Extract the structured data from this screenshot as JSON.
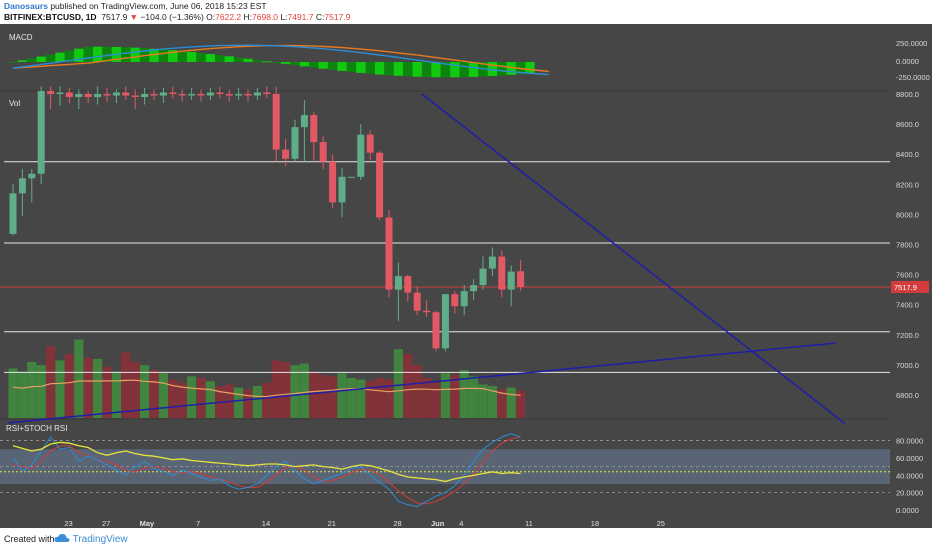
{
  "header": {
    "author": "Danosaurs",
    "published": "published on TradingView.com, June 06, 2018 15:23 EST",
    "symbol": "BITFINEX:BTCUSD, 1D",
    "last": "7517.9",
    "change": "−104.0 (−1.36%)",
    "o_label": "O:",
    "o": "7622.2",
    "h_label": "H:",
    "h": "7698.0",
    "l_label": "L:",
    "l": "7491.7",
    "c_label": "C:",
    "c": "7517.9"
  },
  "footer": {
    "created_with": "Created with",
    "brand": "TradingView"
  },
  "colors": {
    "background": "#464646",
    "bull": "#5fae89",
    "bear": "#e25864",
    "macd_line": "#2d8cd6",
    "signal_line": "#e8791e",
    "histogram": "#1fe21f",
    "trendline": "#1e1ea8",
    "level_line": "#e6e6e6",
    "price_line": "#d33c3c",
    "rsi": "#e6e33c",
    "stoch_k": "#2d8cd6",
    "stoch_d": "#d33c3c",
    "rsi_band": "#6a7f9c"
  },
  "chart_data": [
    {
      "type": "candlestick",
      "title": "BITFINEX:BTCUSD, 1D",
      "x_tick_labels": [
        "23",
        "27",
        "May",
        "7",
        "14",
        "21",
        "28",
        "Jun",
        "4",
        "11",
        "18",
        "25"
      ],
      "price_ticks": [
        "8800.0",
        "8600.0",
        "8400.0",
        "8200.0",
        "8000.0",
        "7800.0",
        "7600.0",
        "7400.0",
        "7200.0",
        "7000.0",
        "6800.0"
      ],
      "y_range": [
        6700,
        8850
      ],
      "last_price_label": "7517.9",
      "candles": [
        {
          "o": 7870,
          "h": 8200,
          "l": 7860,
          "c": 8140
        },
        {
          "o": 8140,
          "h": 8300,
          "l": 7990,
          "c": 8240
        },
        {
          "o": 8240,
          "h": 8300,
          "l": 8080,
          "c": 8270
        },
        {
          "o": 8270,
          "h": 8850,
          "l": 8200,
          "c": 8820
        },
        {
          "o": 8820,
          "h": 8850,
          "l": 8700,
          "c": 8800
        },
        {
          "o": 8800,
          "h": 8850,
          "l": 8720,
          "c": 8810
        },
        {
          "o": 8810,
          "h": 8840,
          "l": 8740,
          "c": 8780
        },
        {
          "o": 8780,
          "h": 8830,
          "l": 8700,
          "c": 8800
        },
        {
          "o": 8800,
          "h": 8820,
          "l": 8740,
          "c": 8780
        },
        {
          "o": 8780,
          "h": 8850,
          "l": 8730,
          "c": 8800
        },
        {
          "o": 8800,
          "h": 8840,
          "l": 8750,
          "c": 8790
        },
        {
          "o": 8790,
          "h": 8830,
          "l": 8740,
          "c": 8810
        },
        {
          "o": 8810,
          "h": 8850,
          "l": 8760,
          "c": 8790
        },
        {
          "o": 8790,
          "h": 8830,
          "l": 8700,
          "c": 8780
        },
        {
          "o": 8780,
          "h": 8840,
          "l": 8730,
          "c": 8800
        },
        {
          "o": 8800,
          "h": 8830,
          "l": 8760,
          "c": 8790
        },
        {
          "o": 8790,
          "h": 8840,
          "l": 8740,
          "c": 8810
        },
        {
          "o": 8810,
          "h": 8850,
          "l": 8770,
          "c": 8800
        },
        {
          "o": 8800,
          "h": 8830,
          "l": 8750,
          "c": 8790
        },
        {
          "o": 8790,
          "h": 8840,
          "l": 8760,
          "c": 8800
        },
        {
          "o": 8800,
          "h": 8830,
          "l": 8750,
          "c": 8790
        },
        {
          "o": 8790,
          "h": 8840,
          "l": 8760,
          "c": 8810
        },
        {
          "o": 8810,
          "h": 8850,
          "l": 8770,
          "c": 8800
        },
        {
          "o": 8800,
          "h": 8830,
          "l": 8750,
          "c": 8790
        },
        {
          "o": 8790,
          "h": 8840,
          "l": 8760,
          "c": 8800
        },
        {
          "o": 8800,
          "h": 8830,
          "l": 8750,
          "c": 8790
        },
        {
          "o": 8790,
          "h": 8840,
          "l": 8760,
          "c": 8810
        },
        {
          "o": 8810,
          "h": 8850,
          "l": 8770,
          "c": 8800
        },
        {
          "o": 8800,
          "h": 8850,
          "l": 8350,
          "c": 8430
        },
        {
          "o": 8430,
          "h": 8500,
          "l": 8320,
          "c": 8370
        },
        {
          "o": 8370,
          "h": 8630,
          "l": 8350,
          "c": 8580
        },
        {
          "o": 8580,
          "h": 8760,
          "l": 8350,
          "c": 8660
        },
        {
          "o": 8660,
          "h": 8680,
          "l": 8350,
          "c": 8480
        },
        {
          "o": 8480,
          "h": 8520,
          "l": 8300,
          "c": 8350
        },
        {
          "o": 8350,
          "h": 8400,
          "l": 8040,
          "c": 8080
        },
        {
          "o": 8080,
          "h": 8310,
          "l": 7980,
          "c": 8250
        },
        {
          "o": 8250,
          "h": 8250,
          "l": 8250,
          "c": 8250
        },
        {
          "o": 8250,
          "h": 8600,
          "l": 8230,
          "c": 8530
        },
        {
          "o": 8530,
          "h": 8560,
          "l": 8360,
          "c": 8410
        },
        {
          "o": 8410,
          "h": 8420,
          "l": 7960,
          "c": 7980
        },
        {
          "o": 7980,
          "h": 8030,
          "l": 7450,
          "c": 7500
        },
        {
          "o": 7500,
          "h": 7680,
          "l": 7290,
          "c": 7590
        },
        {
          "o": 7590,
          "h": 7600,
          "l": 7420,
          "c": 7480
        },
        {
          "o": 7480,
          "h": 7520,
          "l": 7330,
          "c": 7360
        },
        {
          "o": 7360,
          "h": 7430,
          "l": 7320,
          "c": 7350
        },
        {
          "o": 7350,
          "h": 7360,
          "l": 7090,
          "c": 7110
        },
        {
          "o": 7110,
          "h": 7470,
          "l": 7090,
          "c": 7470
        },
        {
          "o": 7470,
          "h": 7490,
          "l": 7340,
          "c": 7390
        },
        {
          "o": 7390,
          "h": 7530,
          "l": 7330,
          "c": 7490
        },
        {
          "o": 7490,
          "h": 7570,
          "l": 7430,
          "c": 7530
        },
        {
          "o": 7530,
          "h": 7720,
          "l": 7500,
          "c": 7640
        },
        {
          "o": 7640,
          "h": 7780,
          "l": 7590,
          "c": 7720
        },
        {
          "o": 7720,
          "h": 7760,
          "l": 7450,
          "c": 7500
        },
        {
          "o": 7500,
          "h": 7660,
          "l": 7390,
          "c": 7620
        },
        {
          "o": 7622.2,
          "h": 7698.0,
          "l": 7491.7,
          "c": 7517.9
        }
      ],
      "horizontal_levels": [
        8350,
        7810,
        7220,
        6950
      ],
      "trendlines": [
        {
          "from": {
            "x_index": -0.5,
            "y": 6615
          },
          "to": {
            "x_index": 87.5,
            "y": 7145
          }
        },
        {
          "from": {
            "x_index": 43.5,
            "y": 8800
          },
          "to": {
            "x_index": 88.5,
            "y": 6610
          }
        }
      ]
    },
    {
      "type": "bar",
      "title": "Vol",
      "values": [
        62,
        58,
        70,
        66,
        90,
        72,
        80,
        98,
        75,
        74,
        64,
        58,
        82,
        70,
        66,
        60,
        56,
        48,
        44,
        52,
        50,
        46,
        40,
        42,
        38,
        36,
        40,
        44,
        72,
        70,
        66,
        68,
        58,
        54,
        52,
        56,
        50,
        48,
        46,
        50,
        48,
        86,
        80,
        66,
        50,
        46,
        56,
        54,
        60,
        52,
        42,
        40,
        36,
        38,
        34
      ]
    },
    {
      "type": "line",
      "title": "MACD",
      "y_ticks": [
        "250.0000",
        "0.0000",
        "-250.0000"
      ],
      "histogram_colors": [
        "#0fd10f",
        "#0b880b"
      ]
    },
    {
      "type": "line",
      "title": "RSI+STOCH RSI",
      "y_ticks": [
        "80.0000",
        "60.0000",
        "40.0000",
        "20.0000",
        "0.0000"
      ],
      "y_range": [
        0,
        100
      ],
      "band": [
        30,
        70
      ],
      "rsi": [
        74,
        71,
        68,
        70,
        76,
        78,
        77,
        74,
        72,
        66,
        63,
        66,
        68,
        65,
        63,
        62,
        60,
        58,
        59,
        57,
        56,
        55,
        54,
        53,
        52,
        51,
        52,
        53,
        53,
        52,
        50,
        51,
        52,
        50,
        49,
        47,
        50,
        52,
        51,
        48,
        45,
        41,
        38,
        37,
        36,
        35,
        33,
        36,
        38,
        40,
        42,
        44,
        42,
        43,
        42
      ],
      "stoch_k": [
        60,
        45,
        52,
        68,
        84,
        70,
        72,
        56,
        62,
        58,
        52,
        46,
        40,
        50,
        56,
        48,
        44,
        40,
        46,
        42,
        38,
        34,
        36,
        28,
        24,
        26,
        30,
        40,
        50,
        56,
        45,
        36,
        30,
        34,
        38,
        42,
        48,
        50,
        40,
        32,
        24,
        10,
        6,
        4,
        10,
        16,
        20,
        28,
        40,
        56,
        70,
        78,
        84,
        88,
        84
      ],
      "stoch_d": [
        52,
        50,
        48,
        56,
        68,
        74,
        74,
        66,
        62,
        58,
        56,
        52,
        46,
        44,
        48,
        50,
        48,
        44,
        43,
        44,
        42,
        38,
        36,
        32,
        28,
        26,
        26,
        32,
        40,
        49,
        50,
        46,
        38,
        33,
        34,
        38,
        43,
        47,
        46,
        41,
        32,
        22,
        14,
        8,
        7,
        10,
        15,
        22,
        30,
        41,
        55,
        68,
        77,
        82,
        84
      ]
    }
  ]
}
